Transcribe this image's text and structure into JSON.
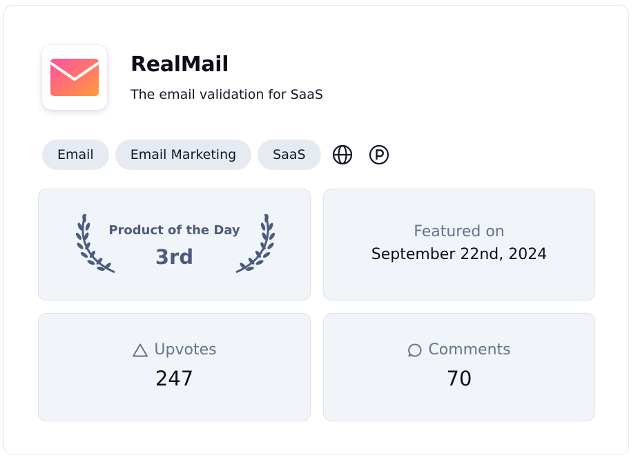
{
  "product": {
    "name": "RealMail",
    "tagline": "The email validation for SaaS",
    "logo_icon": "envelope-icon",
    "logo_gradient": [
      "#ff4fa0",
      "#ff9a3c"
    ]
  },
  "tags": [
    "Email",
    "Email Marketing",
    "SaaS"
  ],
  "links": [
    {
      "icon": "globe-icon"
    },
    {
      "icon": "producthunt-icon"
    }
  ],
  "award": {
    "label": "Product of the Day",
    "rank": "3rd",
    "icon": "laurel-wreath-icon",
    "color": "#4c5b7d"
  },
  "featured": {
    "label": "Featured on",
    "date": "September 22nd, 2024"
  },
  "upvotes": {
    "label": "Upvotes",
    "value": "247",
    "icon": "triangle-up-icon"
  },
  "comments": {
    "label": "Comments",
    "value": "70",
    "icon": "speech-bubble-icon"
  }
}
